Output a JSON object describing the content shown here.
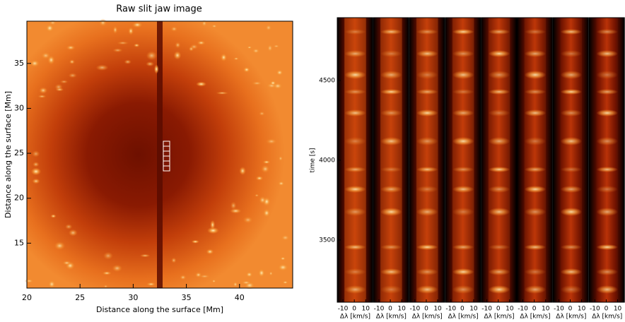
{
  "chart_data": [
    {
      "type": "image",
      "title": "Raw slit jaw image",
      "xlabel": "Distance along the surface [Mm]",
      "ylabel": "Distance along the surface [Mm]",
      "xlim": [
        20,
        45
      ],
      "xticks": [
        20,
        25,
        30,
        35,
        40
      ],
      "ylim": [
        10,
        39.7
      ],
      "yticks": [
        15,
        20,
        25,
        30,
        35
      ]
    },
    {
      "type": "image-panels",
      "xlabel": "Δλ [km/s]",
      "ylabel": "time [s]",
      "xlim": [
        -15,
        16
      ],
      "xticks": [
        -10,
        0,
        10
      ],
      "ylim": [
        3110,
        4894
      ],
      "yticks": [
        3500,
        4000,
        4500
      ]
    }
  ]
}
